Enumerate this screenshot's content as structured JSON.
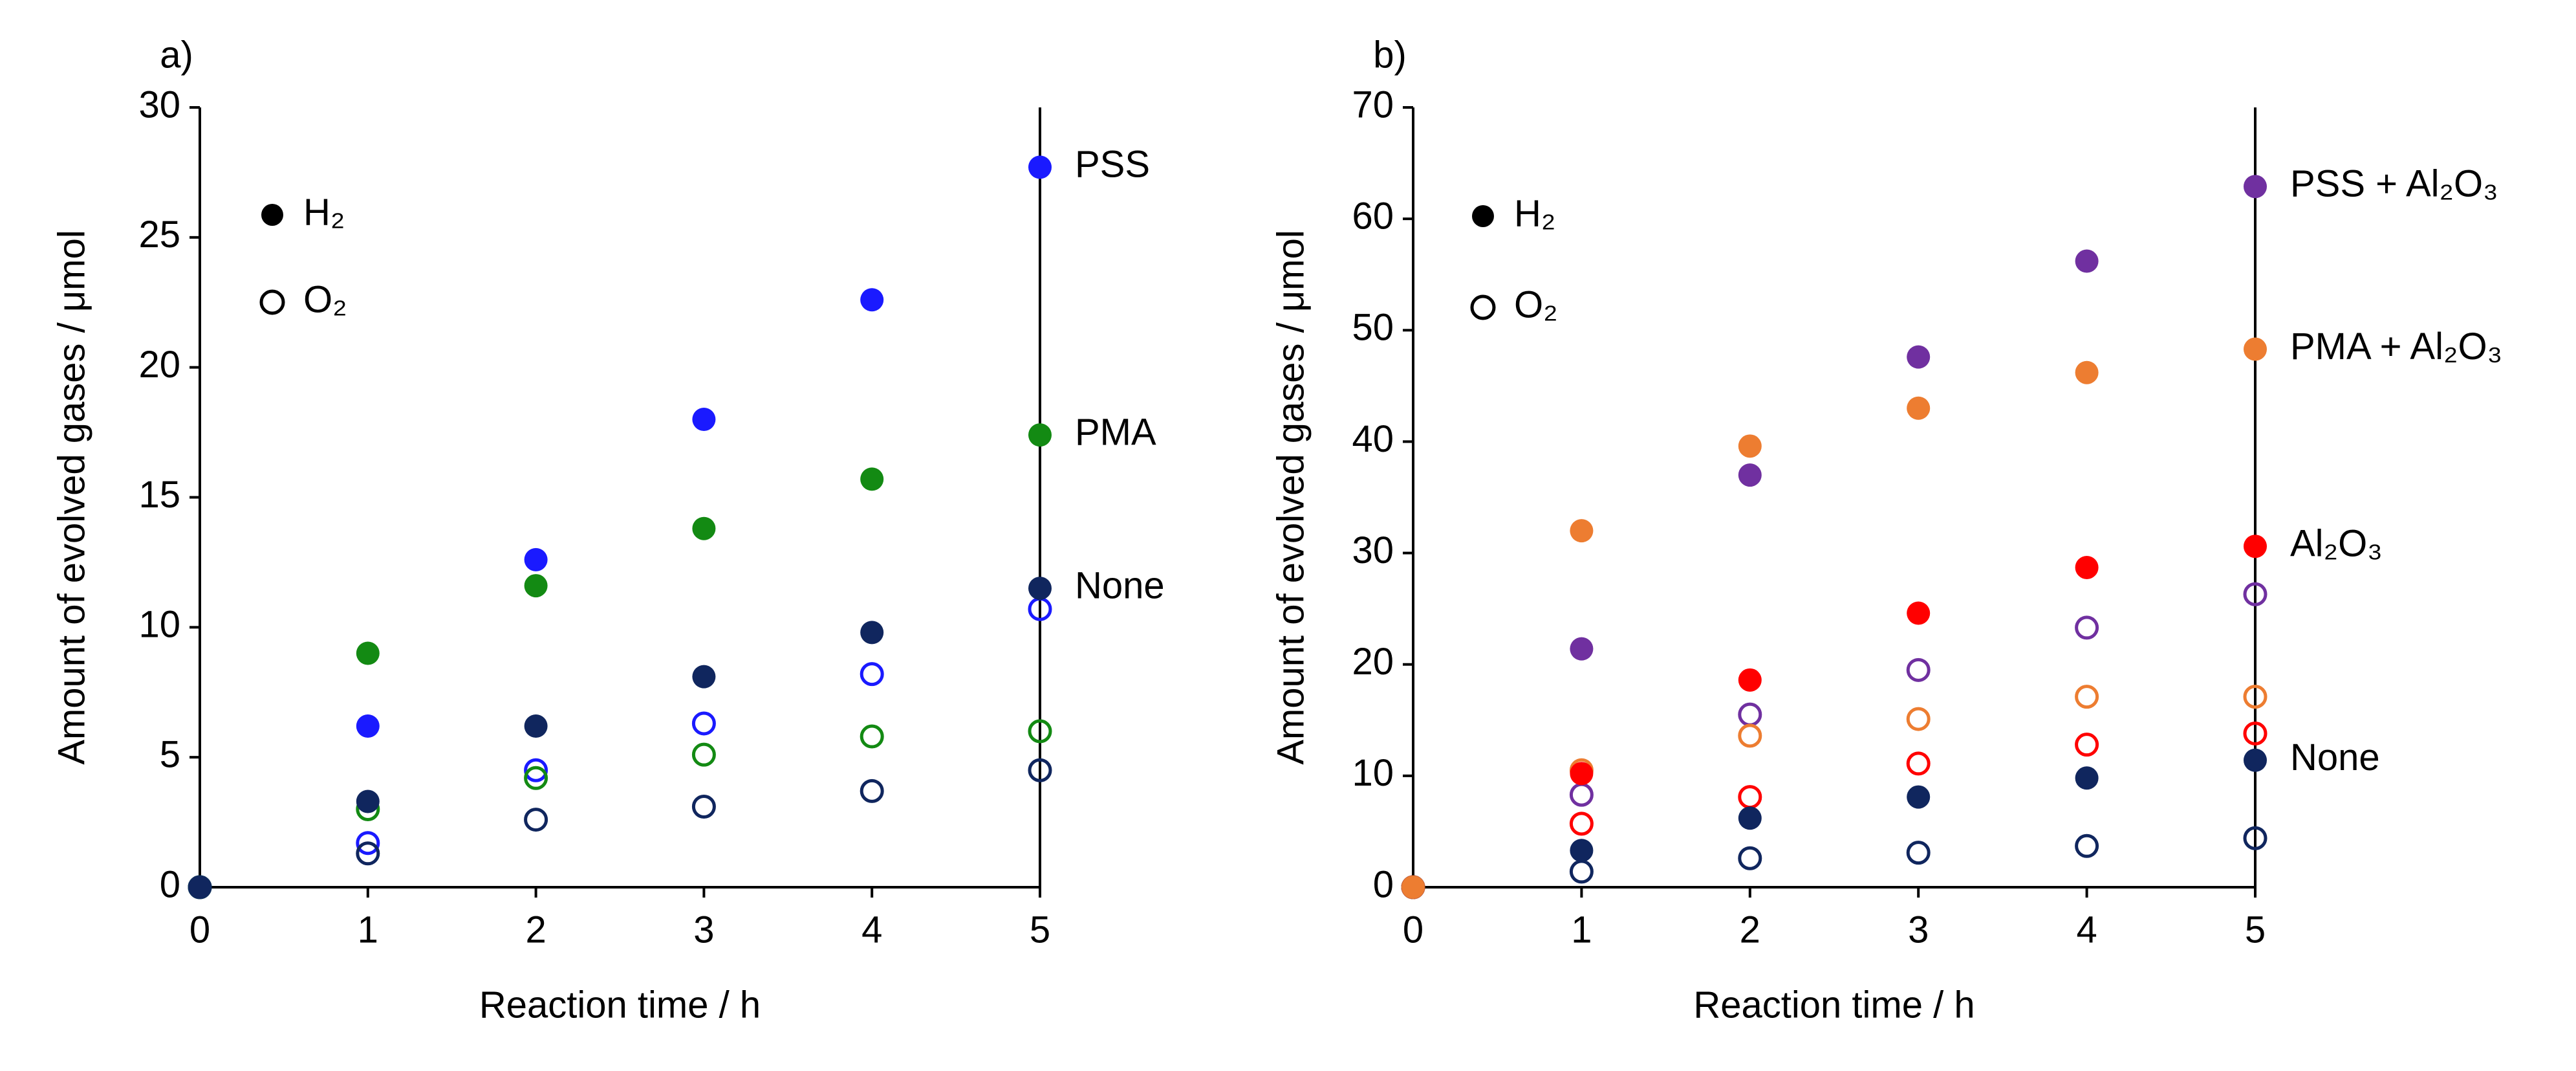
{
  "chart_data": [
    {
      "type": "scatter",
      "panel_label": "a)",
      "x_label": "Reaction time / h",
      "y_label": "Amount of evolved gases / μmol",
      "x": [
        0,
        1,
        2,
        3,
        4,
        5
      ],
      "xlim": [
        0,
        5
      ],
      "xticks": [
        0,
        1,
        2,
        3,
        4,
        5
      ],
      "ylim": [
        0,
        30
      ],
      "yticks": [
        0,
        5,
        10,
        15,
        20,
        25,
        30
      ],
      "legend": [
        {
          "label": "H₂",
          "filled": true
        },
        {
          "label": "O₂",
          "filled": false
        }
      ],
      "series": [
        {
          "name": "PSS",
          "color": "#1a1aff",
          "values": [
            0,
            6.2,
            12.6,
            18.0,
            22.6,
            27.7
          ],
          "o2_values": [
            0,
            1.7,
            4.5,
            6.3,
            8.2,
            10.7
          ]
        },
        {
          "name": "PMA",
          "color": "#138a13",
          "values": [
            0,
            9.0,
            11.6,
            13.8,
            15.7,
            17.4
          ],
          "o2_values": [
            0,
            3.0,
            4.2,
            5.1,
            5.8,
            6.0
          ]
        },
        {
          "name": "None",
          "color": "#10265e",
          "values": [
            0,
            3.3,
            6.2,
            8.1,
            9.8,
            11.5
          ],
          "o2_values": [
            0,
            1.3,
            2.6,
            3.1,
            3.7,
            4.5
          ]
        }
      ]
    },
    {
      "type": "scatter",
      "panel_label": "b)",
      "x_label": "Reaction time / h",
      "y_label": "Amount of evolved gases / μmol",
      "x": [
        0,
        1,
        2,
        3,
        4,
        5
      ],
      "xlim": [
        0,
        5
      ],
      "xticks": [
        0,
        1,
        2,
        3,
        4,
        5
      ],
      "ylim": [
        0,
        70
      ],
      "yticks": [
        0,
        10,
        20,
        30,
        40,
        50,
        60,
        70
      ],
      "legend": [
        {
          "label": "H₂",
          "filled": true
        },
        {
          "label": "O₂",
          "filled": false
        }
      ],
      "series": [
        {
          "name": "PSS + Al₂O₃",
          "color": "#7030a0",
          "values": [
            0,
            21.4,
            37.0,
            47.6,
            56.2,
            62.9
          ],
          "o2_values": [
            0,
            8.3,
            15.5,
            19.5,
            23.3,
            26.3
          ]
        },
        {
          "name": "Al₂O₃",
          "color": "#ff0000",
          "values": [
            0,
            10.2,
            18.6,
            24.6,
            28.7,
            30.6
          ],
          "o2_values": [
            0,
            5.7,
            8.1,
            11.1,
            12.8,
            13.8
          ]
        },
        {
          "name": "None",
          "color": "#10265e",
          "values": [
            0,
            3.3,
            6.2,
            8.1,
            9.8,
            11.4
          ],
          "o2_values": [
            0,
            1.4,
            2.6,
            3.1,
            3.7,
            4.4
          ]
        },
        {
          "name": "PMA + Al₂O₃",
          "color": "#ed7d31",
          "values": [
            0,
            32.0,
            39.6,
            43.0,
            46.2,
            48.3
          ],
          "o2_values": [
            0,
            10.5,
            13.6,
            15.1,
            17.1,
            17.1
          ]
        }
      ]
    }
  ]
}
